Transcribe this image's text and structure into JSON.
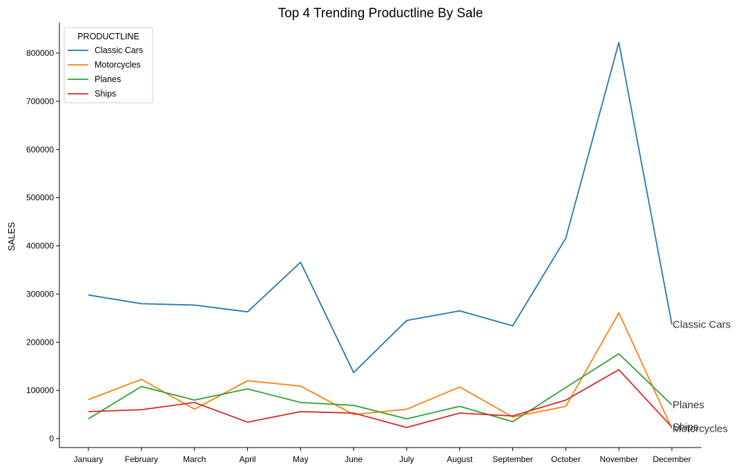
{
  "chart_data": {
    "type": "line",
    "title": "Top 4 Trending Productline By Sale",
    "xlabel": "",
    "ylabel": "SALES",
    "categories": [
      "January",
      "February",
      "March",
      "April",
      "May",
      "June",
      "July",
      "August",
      "September",
      "October",
      "November",
      "December"
    ],
    "ylim": [
      -20000,
      860000
    ],
    "yticks": [
      0,
      100000,
      200000,
      300000,
      400000,
      500000,
      600000,
      700000,
      800000
    ],
    "ytick_labels": [
      "0",
      "100000",
      "200000",
      "300000",
      "400000",
      "500000",
      "600000",
      "700000",
      "800000"
    ],
    "grid": false,
    "legend": {
      "title": "PRODUCTLINE",
      "position": "top-left"
    },
    "series": [
      {
        "name": "Classic Cars",
        "color": "#1f77b4",
        "values": [
          298000,
          280000,
          277000,
          263000,
          366000,
          137000,
          245000,
          265000,
          234000,
          416000,
          822000,
          237000
        ]
      },
      {
        "name": "Motorcycles",
        "color": "#ff7f0e",
        "values": [
          81000,
          123000,
          61000,
          120000,
          109000,
          50000,
          61000,
          107000,
          45000,
          67000,
          261000,
          21000
        ]
      },
      {
        "name": "Planes",
        "color": "#2ca02c",
        "values": [
          41000,
          108000,
          80000,
          103000,
          75000,
          69000,
          41000,
          67000,
          35000,
          106000,
          176000,
          70000
        ]
      },
      {
        "name": "Ships",
        "color": "#d62728",
        "values": [
          56000,
          60000,
          75000,
          34000,
          56000,
          53000,
          23000,
          53000,
          47000,
          80000,
          143000,
          24000
        ]
      }
    ],
    "end_labels": [
      {
        "text": "Classic Cars",
        "series": "Classic Cars"
      },
      {
        "text": "Planes",
        "series": "Planes"
      },
      {
        "text": "Ships",
        "series": "Ships"
      },
      {
        "text": "Motorcycles",
        "series": "Motorcycles"
      }
    ]
  }
}
